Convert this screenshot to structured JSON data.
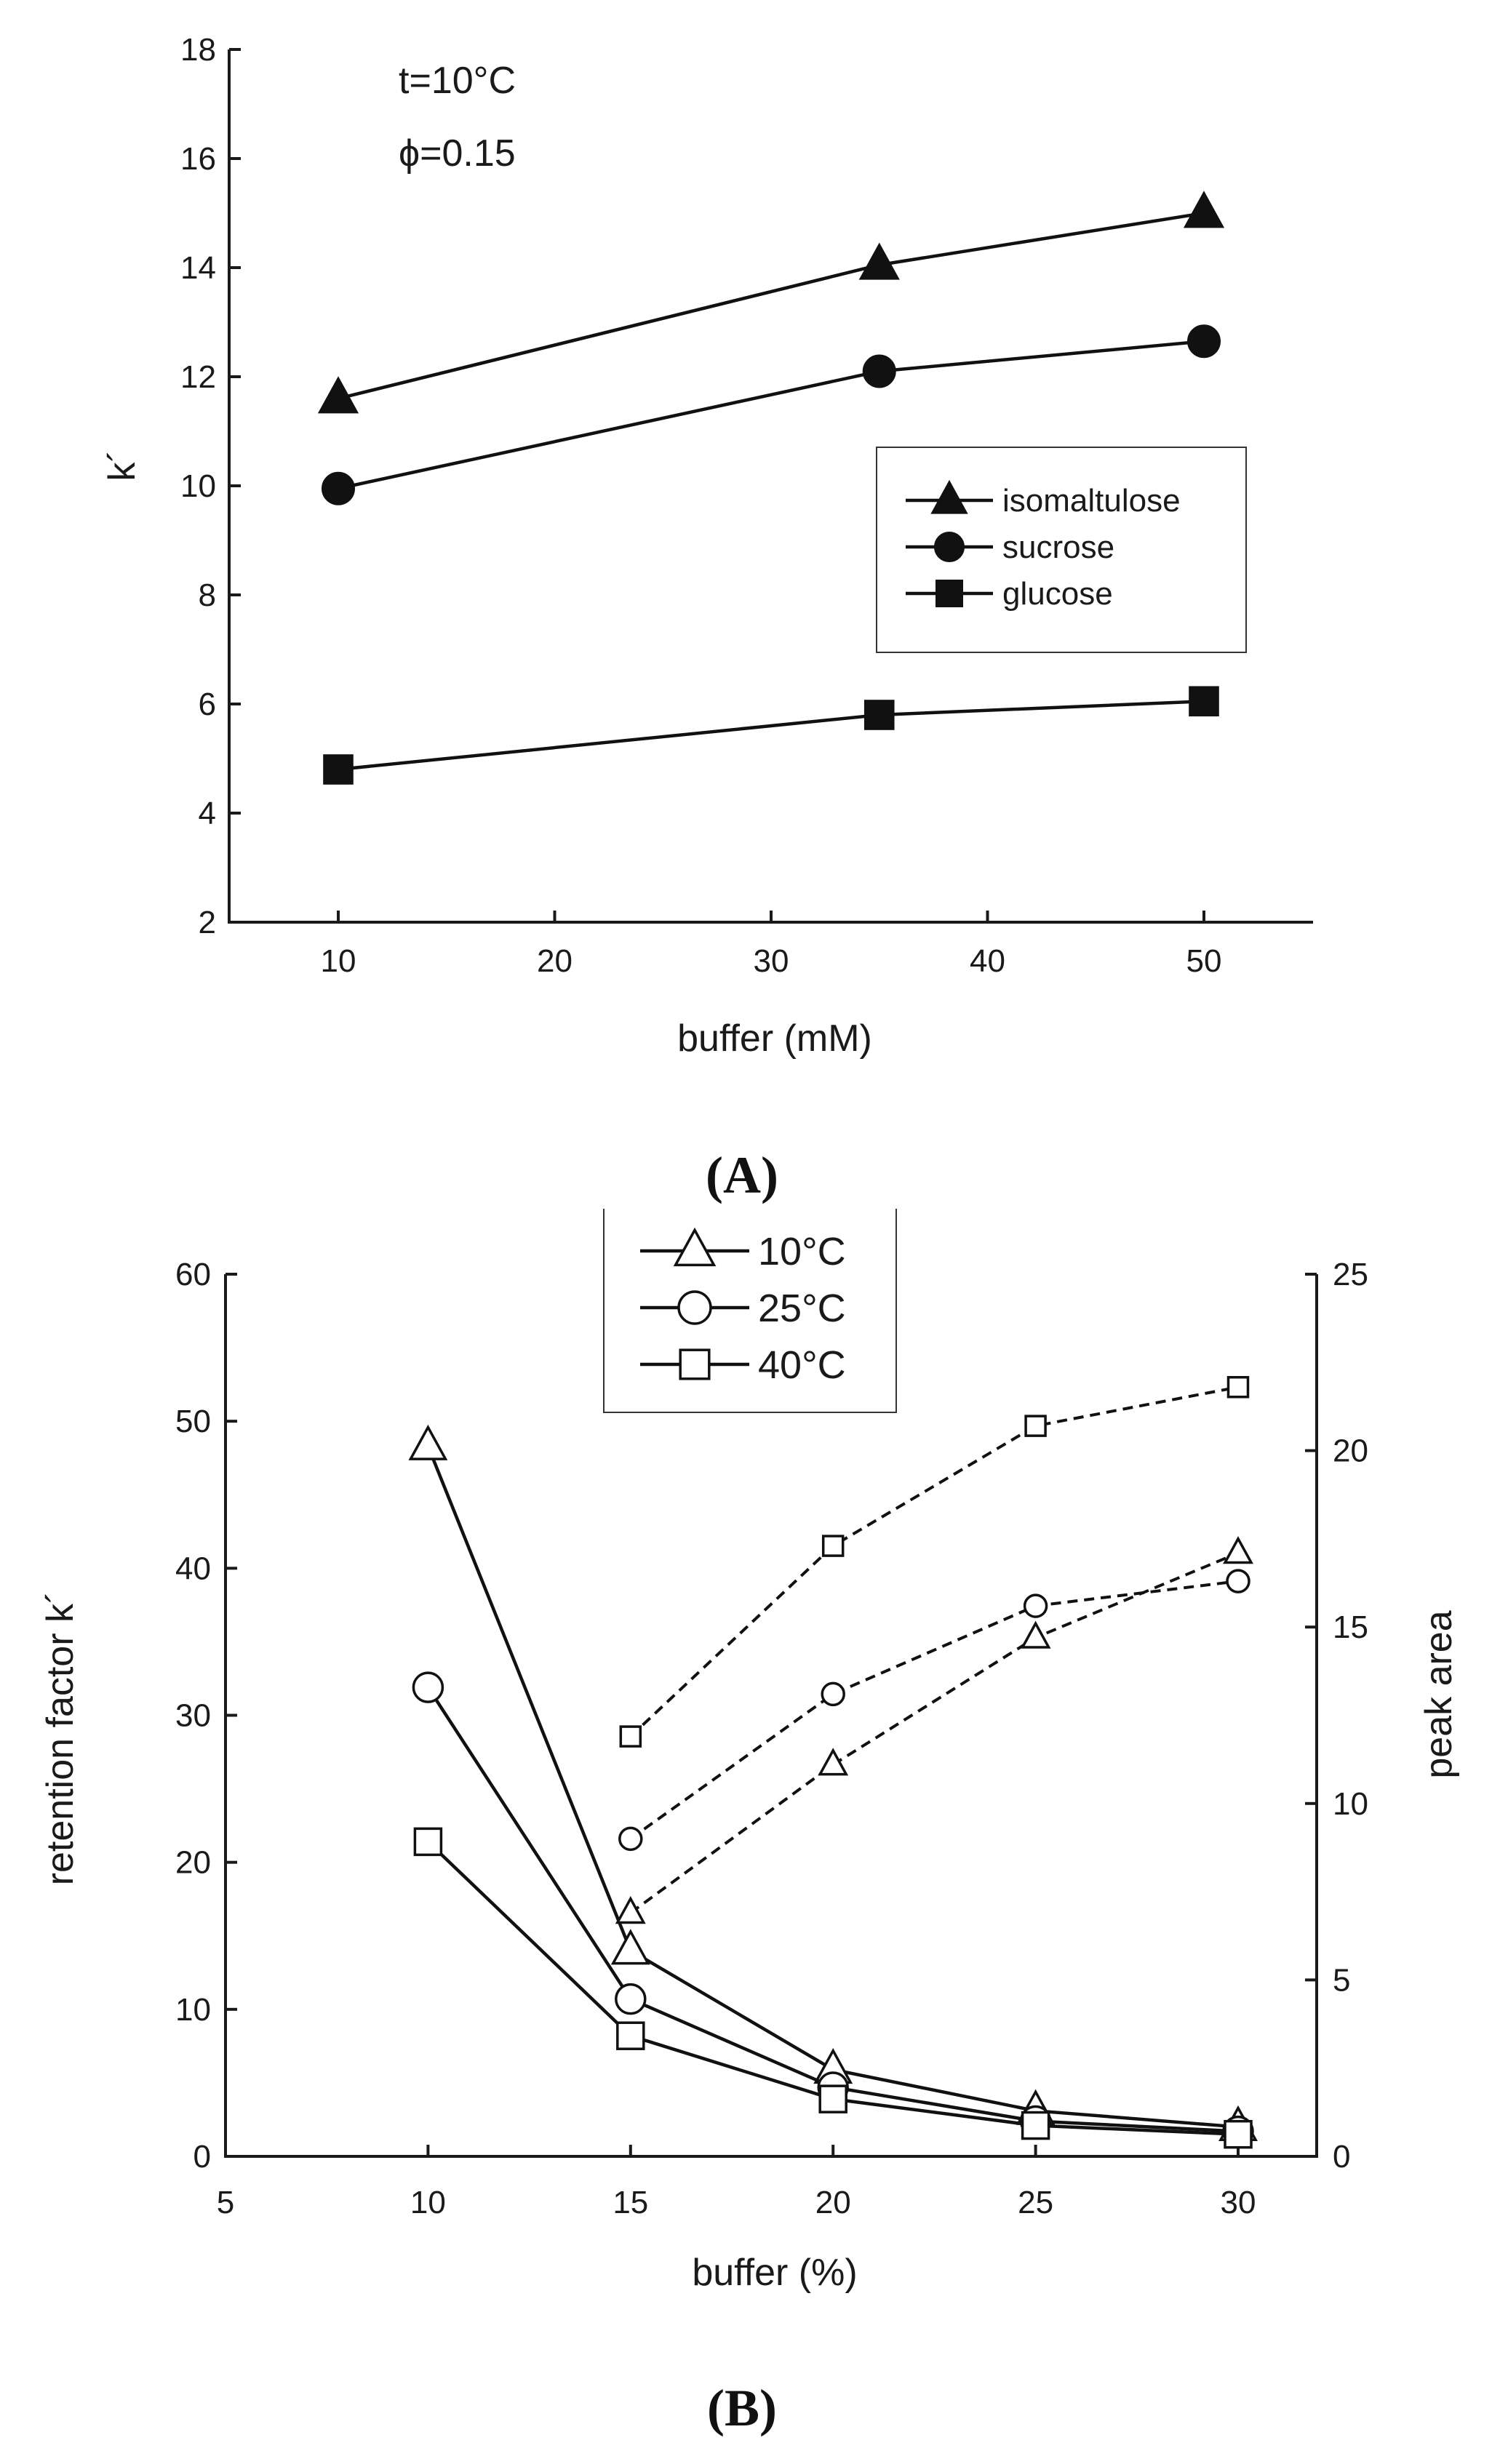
{
  "chart_data": [
    {
      "id": "A",
      "type": "line",
      "panel_label": "(A)",
      "title": "",
      "annotations": [
        "t=10°C",
        "ϕ=0.15"
      ],
      "xlabel": "buffer (mM)",
      "ylabel": "k´",
      "xlim": [
        5,
        55
      ],
      "ylim": [
        2,
        18
      ],
      "xticks": [
        10,
        20,
        30,
        40,
        50
      ],
      "yticks": [
        2,
        4,
        6,
        8,
        10,
        12,
        14,
        16,
        18
      ],
      "legend_position": "right",
      "series": [
        {
          "name": "isomaltulose",
          "marker": "triangle-filled",
          "x": [
            10,
            35,
            50
          ],
          "y": [
            11.6,
            14.05,
            15.0
          ]
        },
        {
          "name": "sucrose",
          "marker": "circle-filled",
          "x": [
            10,
            35,
            50
          ],
          "y": [
            9.95,
            12.1,
            12.65
          ]
        },
        {
          "name": "glucose",
          "marker": "square-filled",
          "x": [
            10,
            35,
            50
          ],
          "y": [
            4.8,
            5.8,
            6.05
          ]
        }
      ]
    },
    {
      "id": "B",
      "type": "line",
      "panel_label": "(B)",
      "title": "",
      "xlabel": "buffer (%)",
      "ylabel": "retention factor k´",
      "ylabel_right": "peak area",
      "xlim": [
        5,
        32
      ],
      "ylim": [
        0,
        60
      ],
      "ylim_right": [
        0,
        25
      ],
      "xticks": [
        5,
        10,
        15,
        20,
        25,
        30
      ],
      "yticks": [
        0,
        10,
        20,
        30,
        40,
        50,
        60
      ],
      "yticks_right": [
        0,
        5,
        10,
        15,
        20,
        25
      ],
      "legend_position": "top-center",
      "series": [
        {
          "name": "10°C",
          "marker": "triangle-open",
          "axis": "left",
          "line": "solid",
          "x": [
            10,
            15,
            20,
            25,
            30
          ],
          "y": [
            48.3,
            14.0,
            5.9,
            3.1,
            2.0
          ]
        },
        {
          "name": "25°C",
          "marker": "circle-open",
          "axis": "left",
          "line": "solid",
          "x": [
            10,
            15,
            20,
            25,
            30
          ],
          "y": [
            31.9,
            10.7,
            4.7,
            2.4,
            1.7
          ]
        },
        {
          "name": "40°C",
          "marker": "square-open",
          "axis": "left",
          "line": "solid",
          "x": [
            10,
            15,
            20,
            25,
            30
          ],
          "y": [
            21.4,
            8.2,
            3.9,
            2.1,
            1.5
          ]
        },
        {
          "name": "10°C peak area",
          "marker": "triangle-open",
          "axis": "right",
          "line": "dashed",
          "x": [
            15,
            20,
            25,
            30
          ],
          "y": [
            6.9,
            11.1,
            14.7,
            17.1
          ]
        },
        {
          "name": "25°C peak area",
          "marker": "circle-open",
          "axis": "right",
          "line": "dashed",
          "x": [
            15,
            20,
            25,
            30
          ],
          "y": [
            9.0,
            13.1,
            15.6,
            16.3
          ]
        },
        {
          "name": "40°C peak area",
          "marker": "square-open",
          "axis": "right",
          "line": "dashed",
          "x": [
            15,
            20,
            25,
            30
          ],
          "y": [
            11.9,
            17.3,
            20.7,
            21.8
          ]
        }
      ]
    }
  ]
}
